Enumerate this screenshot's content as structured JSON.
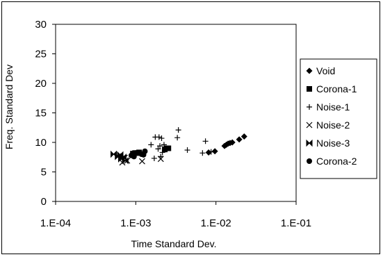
{
  "chart_data": {
    "type": "scatter",
    "xlabel": "Time Standard Dev.",
    "ylabel": "Freq. Standard Dev",
    "x_scale": "log",
    "xlim": [
      0.0001,
      0.1
    ],
    "ylim": [
      0,
      30
    ],
    "x_tick_labels": [
      "1.E-04",
      "1.E-03",
      "1.E-02",
      "1.E-01"
    ],
    "y_tick_labels": [
      "0",
      "5",
      "10",
      "15",
      "20",
      "25",
      "30"
    ],
    "grid": false,
    "legend_position": "right",
    "series": [
      {
        "name": "Void",
        "marker": "diamond",
        "points": [
          [
            0.0081,
            8.3
          ],
          [
            0.0097,
            8.5
          ],
          [
            0.0128,
            9.4
          ],
          [
            0.0135,
            9.6
          ],
          [
            0.0142,
            9.8
          ],
          [
            0.015,
            9.9
          ],
          [
            0.016,
            10.0
          ],
          [
            0.0195,
            10.5
          ],
          [
            0.0225,
            11.0
          ]
        ]
      },
      {
        "name": "Corona-1",
        "marker": "square",
        "points": [
          [
            0.00092,
            8.1
          ],
          [
            0.00098,
            8.2
          ],
          [
            0.00105,
            8.2
          ],
          [
            0.0011,
            8.3
          ],
          [
            0.0023,
            8.8
          ],
          [
            0.00245,
            9.0
          ],
          [
            0.00255,
            9.0
          ]
        ]
      },
      {
        "name": "Noise-1",
        "marker": "plus",
        "points": [
          [
            0.00155,
            9.6
          ],
          [
            0.00175,
            10.9
          ],
          [
            0.00195,
            10.9
          ],
          [
            0.0021,
            10.7
          ],
          [
            0.002,
            9.4
          ],
          [
            0.00225,
            9.6
          ],
          [
            0.0019,
            8.9
          ],
          [
            0.00215,
            8.3
          ],
          [
            0.00205,
            7.6
          ],
          [
            0.0017,
            7.3
          ],
          [
            0.0034,
            12.1
          ],
          [
            0.0033,
            10.8
          ],
          [
            0.0044,
            8.7
          ],
          [
            0.0068,
            8.2
          ],
          [
            0.0074,
            10.2
          ],
          [
            0.0087,
            8.4
          ]
        ]
      },
      {
        "name": "Noise-2",
        "marker": "x",
        "points": [
          [
            0.00068,
            6.6
          ],
          [
            0.00073,
            7.4
          ],
          [
            0.00078,
            6.9
          ],
          [
            0.0012,
            6.8
          ],
          [
            0.00205,
            7.2
          ]
        ]
      },
      {
        "name": "Noise-3",
        "marker": "bowtie",
        "points": [
          [
            0.00053,
            8.0
          ],
          [
            0.0006,
            7.6
          ],
          [
            0.00064,
            7.9
          ],
          [
            0.00066,
            7.2
          ],
          [
            0.0007,
            7.5
          ],
          [
            0.00074,
            6.9
          ]
        ]
      },
      {
        "name": "Corona-2",
        "marker": "circle",
        "points": [
          [
            0.00088,
            7.8
          ],
          [
            0.00095,
            7.6
          ],
          [
            0.00108,
            8.2
          ],
          [
            0.00118,
            8.0
          ],
          [
            0.00125,
            7.9
          ],
          [
            0.0013,
            8.5
          ]
        ]
      }
    ]
  }
}
